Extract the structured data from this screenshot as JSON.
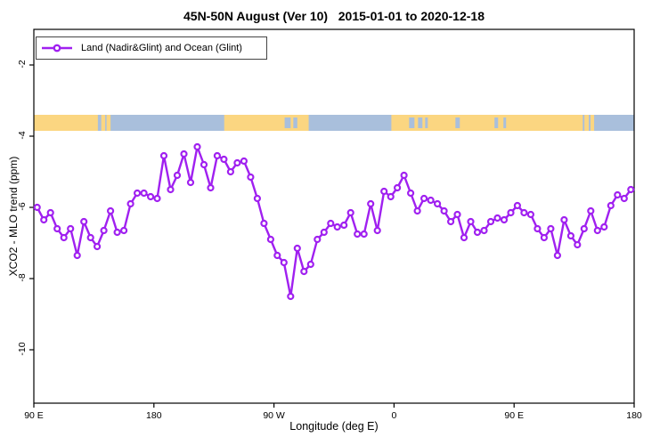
{
  "title": "45N-50N August (Ver 10)   2015-01-01 to 2020-12-18",
  "legend": {
    "label": "Land (Nadir&Glint) and Ocean (Glint)"
  },
  "colors": {
    "series": "#a020f0",
    "land": "#fbd681",
    "ocean": "#a9bfdc",
    "axis": "#000000",
    "background": "#ffffff"
  },
  "chart_data": {
    "type": "line",
    "title": "45N-50N August (Ver 10)   2015-01-01 to 2020-12-18",
    "xlabel": "Longitude (deg E)",
    "ylabel": "XCO2 - MLO trend (ppm)",
    "x_axis_note": "longitude axis starts at 90 E and wraps eastward through 180, 90 W, 0, 90 E to 180 (unwrapped 90..540 deg)",
    "xlim_unwrapped": [
      90,
      540
    ],
    "ylim": [
      -11.5,
      -1.0
    ],
    "grid": false,
    "legend_position": "top-left",
    "x_ticks": [
      {
        "u": 90,
        "label": "90 E"
      },
      {
        "u": 180,
        "label": "180"
      },
      {
        "u": 270,
        "label": "90 W"
      },
      {
        "u": 360,
        "label": "0"
      },
      {
        "u": 450,
        "label": "90 E"
      },
      {
        "u": 540,
        "label": "180"
      }
    ],
    "y_ticks": [
      {
        "v": -2,
        "label": "-2"
      },
      {
        "v": -4,
        "label": "-4"
      },
      {
        "v": -6,
        "label": "-6"
      },
      {
        "v": -8,
        "label": "-8"
      },
      {
        "v": -10,
        "label": "-10"
      }
    ],
    "map_strip": {
      "description": "land/ocean mask band for 45N-50N drawn across plot",
      "y_range_ppm": [
        -3.85,
        -3.4
      ],
      "land_segments_deg_unwrapped": [
        [
          90,
          138
        ],
        [
          140.5,
          143.5
        ],
        [
          144.5,
          147.5
        ],
        [
          232.7,
          296
        ],
        [
          358,
          501.5
        ],
        [
          502.7,
          506
        ],
        [
          507.3,
          510
        ]
      ],
      "water_inclusions_deg_unwrapped": [
        [
          278,
          282.5
        ],
        [
          284.5,
          287.5
        ],
        [
          371.3,
          375.3
        ],
        [
          378,
          381.3
        ],
        [
          383.3,
          385.3
        ],
        [
          406,
          409.3
        ],
        [
          435.3,
          438
        ],
        [
          442,
          444
        ]
      ]
    },
    "series": [
      {
        "name": "Land (Nadir&Glint) and Ocean (Glint)",
        "color": "#a020f0",
        "marker": "open-circle",
        "x_deg_unwrapped": [
          92.5,
          97.5,
          102.5,
          107.5,
          112.5,
          117.5,
          122.5,
          127.5,
          132.5,
          137.5,
          142.5,
          147.5,
          152.5,
          157.5,
          162.5,
          167.5,
          172.5,
          177.5,
          182.5,
          187.5,
          192.5,
          197.5,
          202.5,
          207.5,
          212.5,
          217.5,
          222.5,
          227.5,
          232.5,
          237.5,
          242.5,
          247.5,
          252.5,
          257.5,
          262.5,
          267.5,
          272.5,
          277.5,
          282.5,
          287.5,
          292.5,
          297.5,
          302.5,
          307.5,
          312.5,
          317.5,
          322.5,
          327.5,
          332.5,
          337.5,
          342.5,
          347.5,
          352.5,
          357.5,
          362.5,
          367.5,
          372.5,
          377.5,
          382.5,
          387.5,
          392.5,
          397.5,
          402.5,
          407.5,
          412.5,
          417.5,
          422.5,
          427.5,
          432.5,
          437.5,
          442.5,
          447.5,
          452.5,
          457.5,
          462.5,
          467.5,
          472.5,
          477.5,
          482.5,
          487.5,
          492.5,
          497.5,
          502.5,
          507.5,
          512.5,
          517.5,
          522.5,
          527.5,
          532.5,
          537.5
        ],
        "y_ppm": [
          -6.0,
          -6.35,
          -6.15,
          -6.6,
          -6.85,
          -6.6,
          -7.35,
          -6.4,
          -6.85,
          -7.1,
          -6.65,
          -6.1,
          -6.7,
          -6.65,
          -5.9,
          -5.6,
          -5.6,
          -5.7,
          -5.75,
          -4.55,
          -5.5,
          -5.1,
          -4.5,
          -5.3,
          -4.3,
          -4.8,
          -5.45,
          -4.55,
          -4.65,
          -5.0,
          -4.75,
          -4.7,
          -5.15,
          -5.75,
          -6.45,
          -6.9,
          -7.35,
          -7.55,
          -8.5,
          -7.15,
          -7.8,
          -7.6,
          -6.9,
          -6.7,
          -6.45,
          -6.55,
          -6.5,
          -6.15,
          -6.75,
          -6.75,
          -5.9,
          -6.65,
          -5.55,
          -5.7,
          -5.45,
          -5.1,
          -5.6,
          -6.1,
          -5.75,
          -5.8,
          -5.9,
          -6.1,
          -6.4,
          -6.2,
          -6.85,
          -6.4,
          -6.7,
          -6.65,
          -6.4,
          -6.3,
          -6.35,
          -6.15,
          -5.95,
          -6.15,
          -6.2,
          -6.6,
          -6.85,
          -6.6,
          -7.35,
          -6.35,
          -6.8,
          -7.05,
          -6.6,
          -6.1,
          -6.65,
          -6.55,
          -5.95,
          -5.65,
          -5.75,
          -5.5
        ]
      }
    ]
  }
}
